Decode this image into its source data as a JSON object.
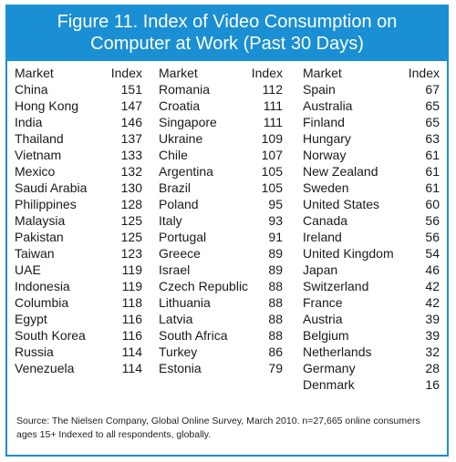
{
  "title_line1": "Figure 11. Index of Video Consumption on",
  "title_line2": "Computer at Work (Past 30 Days)",
  "columns": [
    {
      "header_market": "Market",
      "header_index": "Index",
      "rows": [
        {
          "market": "China",
          "index": "151"
        },
        {
          "market": "Hong Kong",
          "index": "147"
        },
        {
          "market": "India",
          "index": "146"
        },
        {
          "market": "Thailand",
          "index": "137"
        },
        {
          "market": "Vietnam",
          "index": "133"
        },
        {
          "market": "Mexico",
          "index": "132"
        },
        {
          "market": "Saudi Arabia",
          "index": "130"
        },
        {
          "market": "Philippines",
          "index": "128"
        },
        {
          "market": "Malaysia",
          "index": "125"
        },
        {
          "market": "Pakistan",
          "index": "125"
        },
        {
          "market": "Taiwan",
          "index": "123"
        },
        {
          "market": "UAE",
          "index": "119"
        },
        {
          "market": "Indonesia",
          "index": "119"
        },
        {
          "market": "Columbia",
          "index": "118"
        },
        {
          "market": "Egypt",
          "index": "116"
        },
        {
          "market": "South Korea",
          "index": "116"
        },
        {
          "market": "Russia",
          "index": "114"
        },
        {
          "market": "Venezuela",
          "index": "114"
        }
      ]
    },
    {
      "header_market": "Market",
      "header_index": "Index",
      "rows": [
        {
          "market": "Romania",
          "index": "112"
        },
        {
          "market": "Croatia",
          "index": "111"
        },
        {
          "market": "Singapore",
          "index": "111"
        },
        {
          "market": "Ukraine",
          "index": "109"
        },
        {
          "market": "Chile",
          "index": "107"
        },
        {
          "market": "Argentina",
          "index": "105"
        },
        {
          "market": "Brazil",
          "index": "105"
        },
        {
          "market": "Poland",
          "index": "95"
        },
        {
          "market": "Italy",
          "index": "93"
        },
        {
          "market": "Portugal",
          "index": "91"
        },
        {
          "market": "Greece",
          "index": "89"
        },
        {
          "market": "Israel",
          "index": "89"
        },
        {
          "market": "Czech Republic",
          "index": "88"
        },
        {
          "market": "Lithuania",
          "index": "88"
        },
        {
          "market": "Latvia",
          "index": "88"
        },
        {
          "market": "South Africa",
          "index": "88"
        },
        {
          "market": "Turkey",
          "index": "86"
        },
        {
          "market": "Estonia",
          "index": "79"
        }
      ]
    },
    {
      "header_market": "Market",
      "header_index": "Index",
      "rows": [
        {
          "market": "Spain",
          "index": "67"
        },
        {
          "market": "Australia",
          "index": "65"
        },
        {
          "market": "Finland",
          "index": "65"
        },
        {
          "market": "Hungary",
          "index": "63"
        },
        {
          "market": "Norway",
          "index": "61"
        },
        {
          "market": "New Zealand",
          "index": "61"
        },
        {
          "market": "Sweden",
          "index": "61"
        },
        {
          "market": "United States",
          "index": "60"
        },
        {
          "market": "Canada",
          "index": "56"
        },
        {
          "market": "Ireland",
          "index": "56"
        },
        {
          "market": "United Kingdom",
          "index": "54"
        },
        {
          "market": "Japan",
          "index": "46"
        },
        {
          "market": "Switzerland",
          "index": "42"
        },
        {
          "market": "France",
          "index": "42"
        },
        {
          "market": "Austria",
          "index": "39"
        },
        {
          "market": "Belgium",
          "index": "39"
        },
        {
          "market": "Netherlands",
          "index": "32"
        },
        {
          "market": "Germany",
          "index": "28"
        },
        {
          "market": "Denmark",
          "index": "16"
        }
      ]
    }
  ],
  "source_note": "Source: The Nielsen Company, Global Online Survey, March 2010. n=27,665 online consumers ages 15+ Indexed to all respondents, globally.",
  "colors": {
    "header_bg": "#1a8fd3",
    "border": "#1a8fd3",
    "header_text": "#ffffff",
    "body_text": "#1a1a1a"
  }
}
